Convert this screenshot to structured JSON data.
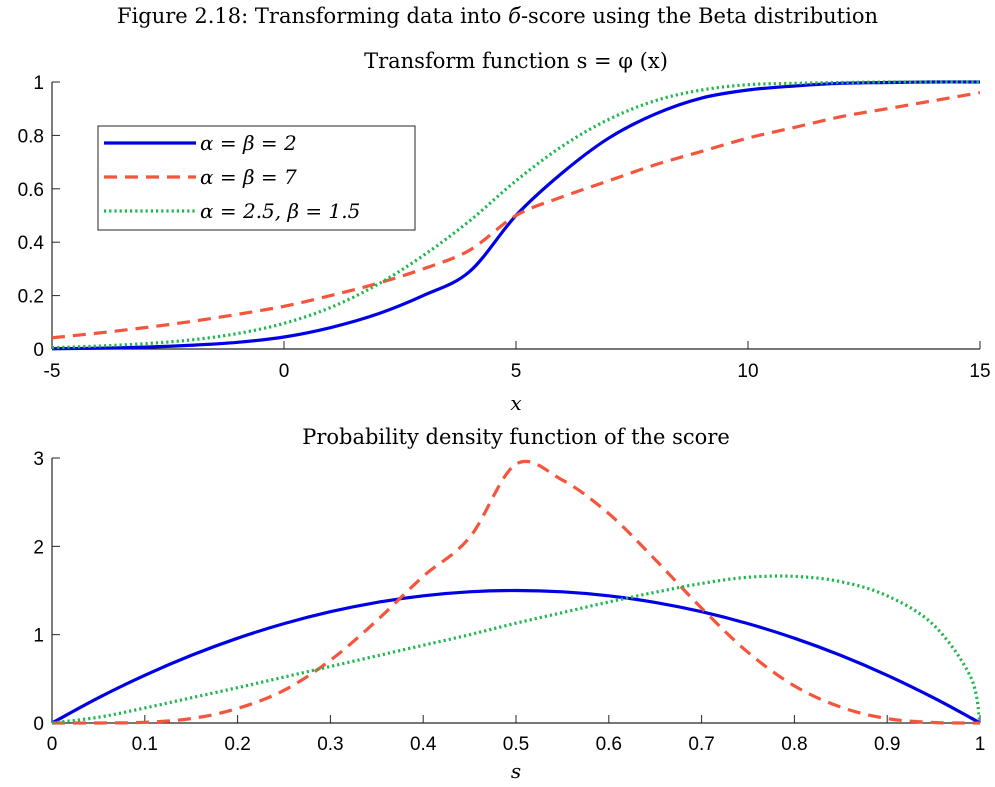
{
  "figure_title": {
    "prefix": "Figure 2.18: Transforming data into ",
    "symbol": "б",
    "suffix": "-score using the Beta distribution"
  },
  "legend": {
    "placement": "top-left",
    "entries": [
      {
        "label": "α = β = 2"
      },
      {
        "label": "α = β = 7"
      },
      {
        "label": "α = 2.5, β = 1.5"
      }
    ]
  },
  "series_styles": [
    {
      "color": "#0000e6",
      "dash": "solid"
    },
    {
      "color": "#f5553c",
      "dash": "dashed"
    },
    {
      "color": "#1fb84e",
      "dash": "dotted"
    }
  ],
  "chart_data": [
    {
      "type": "line",
      "title": "Transform function s = φ (x)",
      "xlabel": "x",
      "ylabel": "",
      "xlim": [
        -5,
        15
      ],
      "ylim": [
        0,
        1
      ],
      "xticks": [
        -5,
        0,
        5,
        10,
        15
      ],
      "xtick_labels": [
        "-5",
        "0",
        "5",
        "10",
        "15"
      ],
      "yticks": [
        0,
        0.2,
        0.4,
        0.6,
        0.8,
        1
      ],
      "ytick_labels": [
        "0",
        "0.2",
        "0.4",
        "0.6",
        "0.8",
        "1"
      ],
      "grid": false,
      "x": [
        -5,
        -4,
        -3,
        -2,
        -1,
        0,
        1,
        2,
        3,
        4,
        5,
        6,
        7,
        8,
        9,
        10,
        11,
        12,
        13,
        14,
        15
      ],
      "series": [
        {
          "values": [
            0.001,
            0.003,
            0.007,
            0.014,
            0.025,
            0.045,
            0.08,
            0.13,
            0.2,
            0.29,
            0.5,
            0.66,
            0.79,
            0.88,
            0.94,
            0.97,
            0.985,
            0.995,
            0.998,
            1.0,
            1.0
          ]
        },
        {
          "values": [
            0.042,
            0.06,
            0.08,
            0.103,
            0.13,
            0.16,
            0.2,
            0.245,
            0.3,
            0.37,
            0.5,
            0.57,
            0.63,
            0.69,
            0.74,
            0.79,
            0.83,
            0.87,
            0.9,
            0.93,
            0.96
          ]
        },
        {
          "values": [
            0.005,
            0.011,
            0.02,
            0.034,
            0.058,
            0.096,
            0.155,
            0.24,
            0.35,
            0.48,
            0.63,
            0.76,
            0.86,
            0.93,
            0.97,
            0.99,
            0.995,
            0.998,
            1.0,
            1.0,
            1.0
          ]
        }
      ]
    },
    {
      "type": "line",
      "title": "Probability density function of the score",
      "xlabel": "s",
      "ylabel": "",
      "xlim": [
        0,
        1
      ],
      "ylim": [
        0,
        3
      ],
      "xticks": [
        0,
        0.1,
        0.2,
        0.3,
        0.4,
        0.5,
        0.6,
        0.7,
        0.8,
        0.9,
        1
      ],
      "xtick_labels": [
        "0",
        "0.1",
        "0.2",
        "0.3",
        "0.4",
        "0.5",
        "0.6",
        "0.7",
        "0.8",
        "0.9",
        "1"
      ],
      "yticks": [
        0,
        1,
        2,
        3
      ],
      "ytick_labels": [
        "0",
        "1",
        "2",
        "3"
      ],
      "grid": false,
      "x": [
        0,
        0.05,
        0.1,
        0.15,
        0.2,
        0.25,
        0.3,
        0.35,
        0.4,
        0.45,
        0.5,
        0.55,
        0.6,
        0.65,
        0.7,
        0.75,
        0.8,
        0.85,
        0.9,
        0.95,
        0.99,
        1.0
      ],
      "series": [
        {
          "values": [
            0,
            0.285,
            0.54,
            0.765,
            0.96,
            1.125,
            1.26,
            1.365,
            1.44,
            1.485,
            1.5,
            1.485,
            1.44,
            1.365,
            1.26,
            1.125,
            0.96,
            0.765,
            0.54,
            0.285,
            0.059,
            0
          ]
        },
        {
          "values": [
            0,
            0.0002,
            0.008,
            0.05,
            0.165,
            0.37,
            0.71,
            1.16,
            1.66,
            2.1,
            2.93,
            2.75,
            2.37,
            1.85,
            1.3,
            0.8,
            0.42,
            0.18,
            0.05,
            0.006,
            0,
            0
          ]
        },
        {
          "values": [
            0,
            0.065,
            0.17,
            0.285,
            0.4,
            0.52,
            0.64,
            0.76,
            0.88,
            1.0,
            1.13,
            1.25,
            1.37,
            1.48,
            1.58,
            1.65,
            1.66,
            1.6,
            1.44,
            1.11,
            0.52,
            0
          ]
        }
      ]
    }
  ]
}
